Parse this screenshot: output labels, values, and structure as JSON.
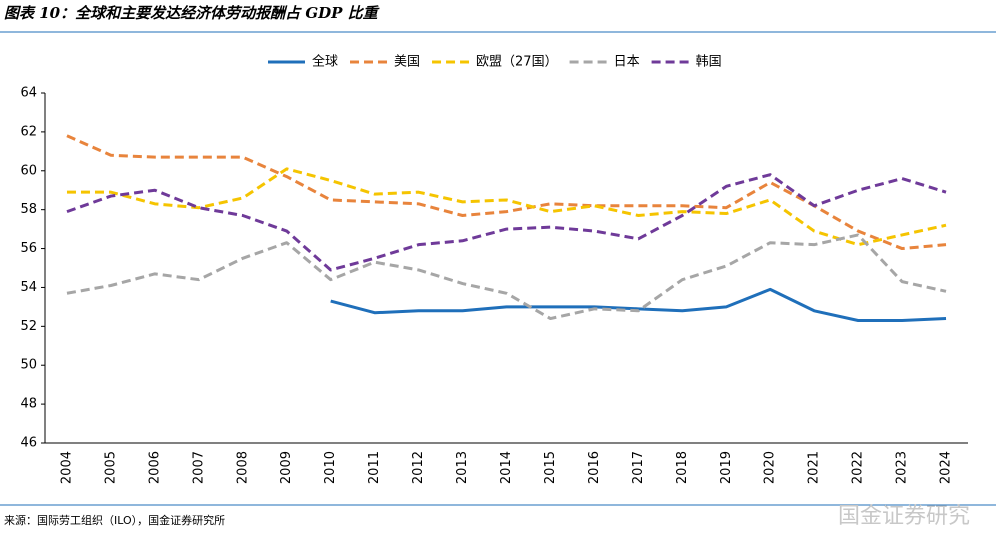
{
  "chart_data": {
    "type": "line",
    "title": "图表 10：全球和主要发达经济体劳动报酬占 GDP 比重",
    "source": "来源：国际劳工组织（ILO），国金证券研究所",
    "watermark": "国金证券研究",
    "categories": [
      "2004",
      "2005",
      "2006",
      "2007",
      "2008",
      "2009",
      "2010",
      "2011",
      "2012",
      "2013",
      "2014",
      "2015",
      "2016",
      "2017",
      "2018",
      "2019",
      "2020",
      "2021",
      "2022",
      "2023",
      "2024"
    ],
    "series": [
      {
        "name": "全球",
        "color": "#1f6fba",
        "style": "solid",
        "values": [
          null,
          null,
          null,
          null,
          null,
          null,
          53.3,
          52.7,
          52.8,
          52.8,
          53.0,
          53.0,
          53.0,
          52.9,
          52.8,
          53.0,
          53.9,
          52.8,
          52.3,
          52.3,
          52.4
        ]
      },
      {
        "name": "美国",
        "color": "#e8843c",
        "style": "dashed",
        "values": [
          61.8,
          60.8,
          60.7,
          60.7,
          60.7,
          59.7,
          58.5,
          58.4,
          58.3,
          57.7,
          57.9,
          58.3,
          58.2,
          58.2,
          58.2,
          58.1,
          59.4,
          58.2,
          56.9,
          56.0,
          56.2
        ]
      },
      {
        "name": "欧盟（27国）",
        "color": "#f5c400",
        "style": "dashed",
        "values": [
          58.9,
          58.9,
          58.3,
          58.1,
          58.6,
          60.1,
          59.5,
          58.8,
          58.9,
          58.4,
          58.5,
          57.9,
          58.2,
          57.7,
          57.9,
          57.8,
          58.5,
          56.9,
          56.2,
          56.7,
          57.2
        ]
      },
      {
        "name": "日本",
        "color": "#a6a6a6",
        "style": "dashed",
        "values": [
          53.7,
          54.1,
          54.7,
          54.4,
          55.5,
          56.3,
          54.4,
          55.3,
          54.9,
          54.2,
          53.7,
          52.4,
          52.9,
          52.8,
          54.4,
          55.1,
          56.3,
          56.2,
          56.7,
          54.3,
          53.8
        ]
      },
      {
        "name": "韩国",
        "color": "#6f3a99",
        "style": "dashed",
        "values": [
          57.9,
          58.7,
          59.0,
          58.1,
          57.7,
          56.9,
          54.9,
          55.5,
          56.2,
          56.4,
          57.0,
          57.1,
          56.9,
          56.5,
          57.7,
          59.2,
          59.8,
          58.2,
          59.0,
          59.6,
          58.9
        ]
      }
    ],
    "ylim": [
      46,
      64
    ],
    "yticks": [
      46,
      48,
      50,
      52,
      54,
      56,
      58,
      60,
      62,
      64
    ],
    "grid": false
  }
}
